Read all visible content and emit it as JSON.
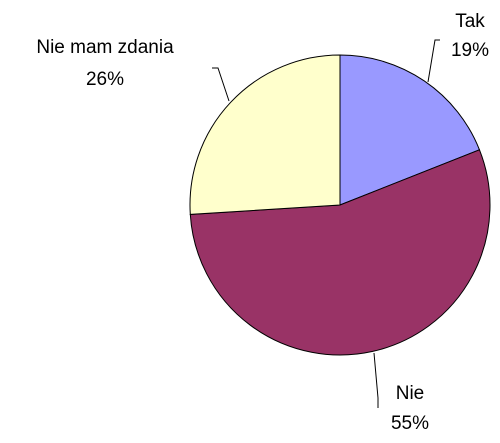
{
  "chart_data": {
    "type": "pie",
    "categories": [
      "Tak",
      "Nie",
      "Nie mam zdania"
    ],
    "values": [
      19,
      55,
      26
    ],
    "value_labels": [
      "19%",
      "55%",
      "26%"
    ],
    "colors": [
      "#9999ff",
      "#993366",
      "#ffffcc"
    ]
  }
}
